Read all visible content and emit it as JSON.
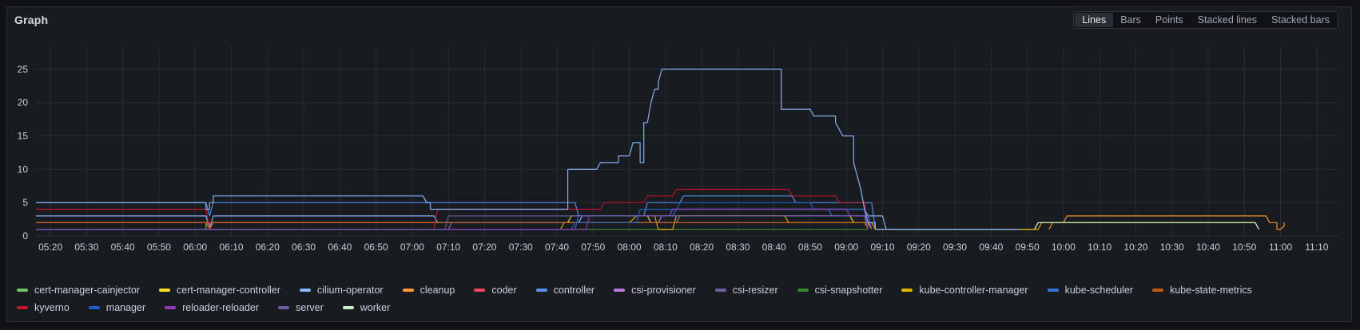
{
  "panel": {
    "title": "Graph"
  },
  "viz_switcher": {
    "options": [
      "Lines",
      "Bars",
      "Points",
      "Stacked lines",
      "Stacked bars"
    ],
    "selected": "Lines"
  },
  "chart_data": {
    "type": "line",
    "xlim": [
      "05:16",
      "11:16"
    ],
    "ylim": [
      0,
      27.5
    ],
    "y_ticks": [
      0,
      5,
      10,
      15,
      20,
      25
    ],
    "x_ticks": [
      "05:20",
      "05:30",
      "05:40",
      "05:50",
      "06:00",
      "06:10",
      "06:20",
      "06:30",
      "06:40",
      "06:50",
      "07:00",
      "07:10",
      "07:20",
      "07:30",
      "07:40",
      "07:50",
      "08:00",
      "08:10",
      "08:20",
      "08:30",
      "08:40",
      "08:50",
      "09:00",
      "09:10",
      "09:20",
      "09:30",
      "09:40",
      "09:50",
      "10:00",
      "10:10",
      "10:20",
      "10:30",
      "10:40",
      "10:50",
      "11:00",
      "11:10"
    ],
    "grid": true,
    "legend_position": "bottom",
    "series": [
      {
        "name": "cert-manager-cainjector",
        "color": "#73bf69",
        "points": [
          [
            "05:16",
            1
          ],
          [
            "06:03",
            1
          ],
          [
            "06:03",
            2
          ],
          [
            "06:04",
            2
          ],
          [
            "06:04",
            1
          ],
          [
            "07:45",
            1
          ],
          [
            "07:45",
            1
          ]
        ]
      },
      {
        "name": "cert-manager-controller",
        "color": "#fade2a",
        "points": [
          [
            "05:16",
            2
          ],
          [
            "06:03",
            2
          ],
          [
            "06:04",
            1
          ],
          [
            "06:05",
            2
          ],
          [
            "07:43",
            2
          ],
          [
            "07:44",
            3
          ],
          [
            "07:59",
            3
          ],
          [
            "08:05",
            3
          ],
          [
            "08:06",
            2
          ],
          [
            "08:13",
            2
          ],
          [
            "08:14",
            3
          ],
          [
            "09:01",
            3
          ],
          [
            "09:02",
            2
          ],
          [
            "09:06",
            2
          ],
          [
            "09:07",
            1
          ]
        ]
      },
      {
        "name": "cilium-operator",
        "color": "#8ab8ff",
        "points": [
          [
            "05:16",
            3
          ],
          [
            "06:03",
            3
          ],
          [
            "06:04",
            1
          ],
          [
            "06:05",
            3
          ],
          [
            "07:06",
            3
          ],
          [
            "07:07",
            2
          ],
          [
            "07:46",
            2
          ],
          [
            "07:47",
            3
          ],
          [
            "08:11",
            3
          ],
          [
            "08:12",
            4
          ],
          [
            "09:05",
            4
          ],
          [
            "09:06",
            3
          ],
          [
            "09:10",
            3
          ],
          [
            "09:11",
            1
          ],
          [
            "09:52",
            1
          ],
          [
            "09:53",
            2
          ],
          [
            "10:53",
            2
          ],
          [
            "10:54",
            1
          ]
        ]
      },
      {
        "name": "cleanup",
        "color": "#ff9830",
        "points": [
          [
            "09:56",
            1
          ],
          [
            "09:57",
            2
          ],
          [
            "10:00",
            2
          ],
          [
            "10:01",
            3
          ],
          [
            "10:56",
            3
          ],
          [
            "10:57",
            2
          ],
          [
            "10:59",
            2
          ],
          [
            "10:59",
            1
          ],
          [
            "11:00",
            1
          ],
          [
            "11:01",
            1.5
          ],
          [
            "11:01",
            2
          ]
        ]
      },
      {
        "name": "coder",
        "color": "#f2495c",
        "points": [
          [
            "05:16",
            2
          ],
          [
            "06:05",
            2
          ],
          [
            "06:05",
            2
          ],
          [
            "09:05",
            2
          ],
          [
            "09:06",
            1
          ]
        ]
      },
      {
        "name": "controller",
        "color": "#5794f2",
        "points": [
          [
            "05:16",
            5
          ],
          [
            "06:03",
            5
          ],
          [
            "06:04",
            3
          ],
          [
            "06:05",
            5
          ],
          [
            "07:45",
            5
          ],
          [
            "07:46",
            3
          ],
          [
            "08:04",
            3
          ],
          [
            "08:05",
            5
          ],
          [
            "08:14",
            5
          ],
          [
            "08:15",
            6
          ],
          [
            "08:45",
            6
          ],
          [
            "08:46",
            5
          ],
          [
            "09:07",
            5
          ],
          [
            "09:08",
            1
          ]
        ]
      },
      {
        "name": "csi-provisioner",
        "color": "#b877d9",
        "points": [
          [
            "05:16",
            1
          ],
          [
            "07:10",
            1
          ],
          [
            "07:11",
            2
          ],
          [
            "08:08",
            2
          ],
          [
            "08:09",
            3
          ],
          [
            "09:05",
            3
          ],
          [
            "09:06",
            1
          ]
        ]
      },
      {
        "name": "csi-resizer",
        "color": "#705da0",
        "points": [
          [
            "05:16",
            1
          ],
          [
            "07:10",
            1
          ],
          [
            "07:11",
            2
          ],
          [
            "08:13",
            2
          ],
          [
            "08:14",
            3
          ],
          [
            "09:05",
            3
          ],
          [
            "09:06",
            1
          ]
        ]
      },
      {
        "name": "csi-snapshotter",
        "color": "#37872d",
        "points": [
          [
            "05:16",
            1
          ],
          [
            "07:10",
            1
          ],
          [
            "07:11",
            1
          ],
          [
            "09:05",
            1
          ],
          [
            "09:06",
            1
          ]
        ]
      },
      {
        "name": "kube-controller-manager",
        "color": "#e0b400",
        "points": [
          [
            "05:16",
            1
          ],
          [
            "07:41",
            1
          ],
          [
            "07:42",
            2
          ],
          [
            "08:00",
            2
          ],
          [
            "08:02",
            3
          ],
          [
            "08:07",
            3
          ],
          [
            "08:08",
            1
          ],
          [
            "08:12",
            1
          ],
          [
            "08:13",
            3
          ],
          [
            "08:43",
            3
          ],
          [
            "08:44",
            2
          ],
          [
            "09:07",
            2
          ],
          [
            "09:08",
            1
          ],
          [
            "09:53",
            1
          ],
          [
            "09:54",
            2
          ],
          [
            "10:53",
            2
          ],
          [
            "10:54",
            1
          ]
        ]
      },
      {
        "name": "kube-scheduler",
        "color": "#3274d9",
        "points": [
          [
            "05:16",
            1
          ],
          [
            "07:45",
            1
          ],
          [
            "07:46",
            3
          ],
          [
            "08:12",
            3
          ],
          [
            "08:13",
            4
          ],
          [
            "08:55",
            4
          ],
          [
            "08:56",
            3
          ],
          [
            "09:06",
            3
          ],
          [
            "09:07",
            1
          ]
        ]
      },
      {
        "name": "kube-state-metrics",
        "color": "#c15c17",
        "points": [
          [
            "05:16",
            2
          ],
          [
            "06:03",
            2
          ],
          [
            "06:04",
            1
          ],
          [
            "06:05",
            2
          ],
          [
            "09:05",
            2
          ],
          [
            "09:06",
            1
          ]
        ]
      },
      {
        "name": "kyverno",
        "color": "#c4162a",
        "points": [
          [
            "05:16",
            4
          ],
          [
            "06:03",
            4
          ],
          [
            "06:04",
            1
          ],
          [
            "06:05",
            1
          ],
          [
            "07:06",
            1
          ],
          [
            "07:07",
            4
          ],
          [
            "07:52",
            4
          ],
          [
            "07:53",
            5
          ],
          [
            "08:04",
            5
          ],
          [
            "08:05",
            6
          ],
          [
            "08:12",
            6
          ],
          [
            "08:13",
            7
          ],
          [
            "08:44",
            7
          ],
          [
            "08:45",
            6
          ],
          [
            "08:57",
            6
          ],
          [
            "08:58",
            5
          ],
          [
            "09:05",
            5
          ],
          [
            "09:06",
            1
          ]
        ]
      },
      {
        "name": "manager",
        "color": "#1f60c4",
        "points": [
          [
            "05:16",
            1
          ],
          [
            "07:44",
            1
          ],
          [
            "07:45",
            2
          ],
          [
            "08:02",
            2
          ],
          [
            "08:03",
            4
          ],
          [
            "08:13",
            4
          ],
          [
            "08:14",
            5
          ],
          [
            "08:50",
            5
          ],
          [
            "08:51",
            4
          ],
          [
            "09:05",
            4
          ],
          [
            "09:06",
            1
          ]
        ]
      },
      {
        "name": "reloader-reloader",
        "color": "#8f3bb8",
        "points": [
          [
            "05:16",
            1
          ],
          [
            "07:48",
            1
          ],
          [
            "07:49",
            3
          ],
          [
            "08:11",
            3
          ],
          [
            "08:12",
            4
          ],
          [
            "09:00",
            4
          ],
          [
            "09:01",
            3
          ],
          [
            "09:06",
            3
          ],
          [
            "09:07",
            1
          ]
        ]
      },
      {
        "name": "server",
        "color": "#6e5ba6",
        "points": [
          [
            "05:16",
            1
          ],
          [
            "07:09",
            1
          ],
          [
            "07:10",
            3
          ],
          [
            "08:07",
            3
          ],
          [
            "08:08",
            3
          ],
          [
            "09:05",
            3
          ],
          [
            "09:06",
            1
          ]
        ]
      },
      {
        "name": "worker",
        "color": "#c8f2c2",
        "points": [
          [
            "09:52",
            1
          ],
          [
            "09:53",
            2
          ],
          [
            "10:02",
            2
          ],
          [
            "10:53",
            2
          ],
          [
            "10:54",
            1
          ]
        ]
      },
      {
        "name": "",
        "color": "#8ab8ff",
        "peak": true,
        "points": [
          [
            "05:16",
            5
          ],
          [
            "06:03",
            5
          ],
          [
            "06:03",
            4
          ],
          [
            "06:04",
            4
          ],
          [
            "06:04",
            5
          ],
          [
            "06:05",
            5
          ],
          [
            "06:05",
            6
          ],
          [
            "06:06",
            6
          ],
          [
            "07:03",
            6
          ],
          [
            "07:04",
            5
          ],
          [
            "07:05",
            5
          ],
          [
            "07:05",
            4
          ],
          [
            "07:43",
            4
          ],
          [
            "07:43",
            10
          ],
          [
            "07:51",
            10
          ],
          [
            "07:52",
            11
          ],
          [
            "07:57",
            11
          ],
          [
            "07:57",
            12
          ],
          [
            "08:00",
            12
          ],
          [
            "08:01",
            14
          ],
          [
            "08:03",
            14
          ],
          [
            "08:03",
            11
          ],
          [
            "08:04",
            11
          ],
          [
            "08:04",
            17
          ],
          [
            "08:05",
            17
          ],
          [
            "08:06",
            20
          ],
          [
            "08:07",
            22
          ],
          [
            "08:08",
            22
          ],
          [
            "08:08",
            23
          ],
          [
            "08:09",
            25
          ],
          [
            "08:42",
            25
          ],
          [
            "08:42",
            19
          ],
          [
            "08:50",
            19
          ],
          [
            "08:51",
            18
          ],
          [
            "08:57",
            18
          ],
          [
            "08:57",
            17
          ],
          [
            "08:58",
            16
          ],
          [
            "08:59",
            15
          ],
          [
            "09:02",
            15
          ],
          [
            "09:02",
            11
          ],
          [
            "09:03",
            9
          ],
          [
            "09:04",
            7
          ],
          [
            "09:05",
            4
          ],
          [
            "09:06",
            2
          ],
          [
            "09:08",
            2
          ],
          [
            "09:08",
            1
          ],
          [
            "09:48",
            1
          ]
        ]
      }
    ]
  },
  "legend": [
    {
      "label": "cert-manager-cainjector",
      "color": "#73bf69"
    },
    {
      "label": "cert-manager-controller",
      "color": "#fade2a"
    },
    {
      "label": "cilium-operator",
      "color": "#8ab8ff"
    },
    {
      "label": "cleanup",
      "color": "#ff9830"
    },
    {
      "label": "coder",
      "color": "#f2495c"
    },
    {
      "label": "controller",
      "color": "#5794f2"
    },
    {
      "label": "csi-provisioner",
      "color": "#b877d9"
    },
    {
      "label": "csi-resizer",
      "color": "#705da0"
    },
    {
      "label": "csi-snapshotter",
      "color": "#37872d"
    },
    {
      "label": "kube-controller-manager",
      "color": "#e0b400"
    },
    {
      "label": "kube-scheduler",
      "color": "#3274d9"
    },
    {
      "label": "kube-state-metrics",
      "color": "#c15c17"
    },
    {
      "label": "kyverno",
      "color": "#c4162a"
    },
    {
      "label": "manager",
      "color": "#1f60c4"
    },
    {
      "label": "reloader-reloader",
      "color": "#8f3bb8"
    },
    {
      "label": "server",
      "color": "#6e5ba6"
    },
    {
      "label": "worker",
      "color": "#c8f2c2"
    }
  ]
}
